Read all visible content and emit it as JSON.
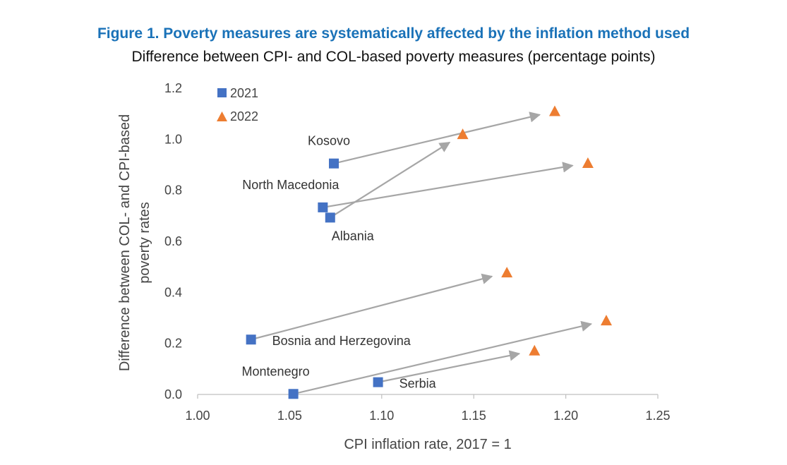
{
  "chart_data": {
    "type": "scatter",
    "title": "Figure 1. Poverty measures are systematically affected by the inflation method used",
    "subtitle": "Difference between  CPI- and COL-based poverty measures (percentage points)",
    "xlabel": "CPI inflation rate, 2017 = 1",
    "ylabel_lines": [
      "Difference between COL- and CPI-based",
      "poverty rates"
    ],
    "xlim": [
      1.0,
      1.25
    ],
    "ylim": [
      0.0,
      1.2
    ],
    "xticks": [
      1.0,
      1.05,
      1.1,
      1.15,
      1.2,
      1.25
    ],
    "xtick_labels": [
      "1.00",
      "1.05",
      "1.10",
      "1.15",
      "1.20",
      "1.25"
    ],
    "yticks": [
      0.0,
      0.2,
      0.4,
      0.6,
      0.8,
      1.0,
      1.2
    ],
    "ytick_labels": [
      "0.0",
      "0.2",
      "0.4",
      "0.6",
      "0.8",
      "1.0",
      "1.2"
    ],
    "legend": {
      "position": "top-left",
      "entries": [
        {
          "label": "2021",
          "marker": "square",
          "color": "#4472c4"
        },
        {
          "label": "2022",
          "marker": "triangle",
          "color": "#ed7d31"
        }
      ]
    },
    "arrow_color": "#a6a6a6",
    "series": [
      {
        "name": "2021",
        "marker": "square",
        "color": "#4472c4",
        "points": [
          {
            "country": "Kosovo",
            "x": 1.074,
            "y": 0.905
          },
          {
            "country": "North Macedonia",
            "x": 1.068,
            "y": 0.733
          },
          {
            "country": "Albania",
            "x": 1.072,
            "y": 0.693
          },
          {
            "country": "Bosnia and Herzegovina",
            "x": 1.029,
            "y": 0.215
          },
          {
            "country": "Montenegro",
            "x": 1.052,
            "y": 0.002
          },
          {
            "country": "Serbia",
            "x": 1.098,
            "y": 0.048
          }
        ]
      },
      {
        "name": "2022",
        "marker": "triangle",
        "color": "#ed7d31",
        "points": [
          {
            "country": "Kosovo",
            "x": 1.194,
            "y": 1.11
          },
          {
            "country": "North Macedonia",
            "x": 1.212,
            "y": 0.907
          },
          {
            "country": "Albania",
            "x": 1.144,
            "y": 1.02
          },
          {
            "country": "Bosnia and Herzegovina",
            "x": 1.168,
            "y": 0.478
          },
          {
            "country": "Montenegro",
            "x": 1.222,
            "y": 0.29
          },
          {
            "country": "Serbia",
            "x": 1.183,
            "y": 0.172
          }
        ]
      }
    ],
    "annotations": [
      {
        "text": "Kosovo",
        "country": "Kosovo",
        "placement": "above-left"
      },
      {
        "text": "North Macedonia",
        "country": "North Macedonia",
        "placement": "above-left"
      },
      {
        "text": "Albania",
        "country": "Albania",
        "placement": "below"
      },
      {
        "text": "Bosnia and Herzegovina",
        "country": "Bosnia and Herzegovina",
        "placement": "right"
      },
      {
        "text": "Montenegro",
        "country": "Montenegro",
        "placement": "above-left"
      },
      {
        "text": "Serbia",
        "country": "Serbia",
        "placement": "right"
      }
    ]
  }
}
